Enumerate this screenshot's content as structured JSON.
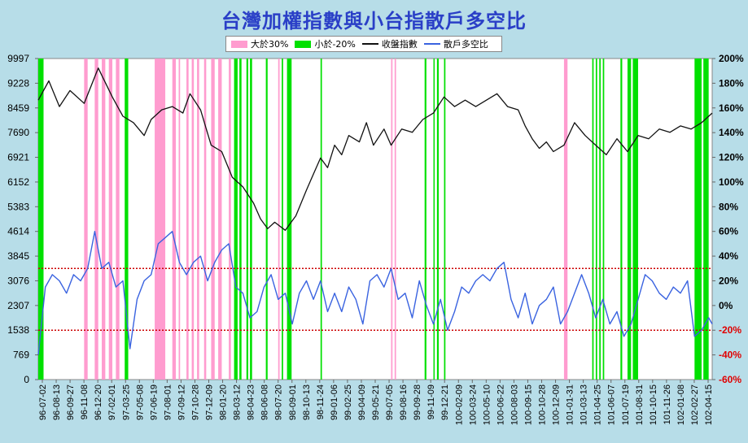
{
  "title": "台灣加權指數與小台指散戶多空比",
  "legend": {
    "items": [
      {
        "label": "大於30%",
        "kind": "band",
        "color": "#ff9ccf"
      },
      {
        "label": "小於-20%",
        "kind": "band",
        "color": "#00e000"
      },
      {
        "label": "收盤指數",
        "kind": "line",
        "color": "#111111"
      },
      {
        "label": "散戶多空比",
        "kind": "line",
        "color": "#3a63e0"
      }
    ]
  },
  "chart_data": {
    "type": "line",
    "y_left": {
      "min": 0,
      "max": 9997,
      "ticks": [
        "9997",
        "9228",
        "8459",
        "7690",
        "6921",
        "6152",
        "5383",
        "4614",
        "3845",
        "3076",
        "2307",
        "1538",
        "769",
        "0"
      ]
    },
    "y_right": {
      "min": -60,
      "max": 200,
      "ticks": [
        "200%",
        "180%",
        "160%",
        "140%",
        "120%",
        "100%",
        "80%",
        "60%",
        "40%",
        "20%",
        "0%",
        "-20%",
        "-40%",
        "-60%"
      ]
    },
    "x_labels": [
      "96-07-02",
      "96-08-13",
      "96-09-27",
      "96-11-08",
      "96-12-20",
      "97-02-01",
      "97-03-25",
      "97-05-08",
      "97-06-19",
      "97-08-01",
      "97-09-12",
      "97-10-28",
      "97-12-09",
      "98-01-20",
      "98-03-12",
      "98-04-23",
      "98-06-08",
      "98-07-20",
      "98-09-01",
      "98-10-13",
      "98-11-24",
      "99-01-06",
      "99-02-25",
      "99-04-09",
      "99-05-21",
      "99-07-05",
      "99-08-16",
      "99-09-28",
      "99-11-09",
      "99-12-21",
      "100-02-09",
      "100-03-24",
      "100-05-10",
      "100-06-22",
      "100-08-03",
      "100-09-15",
      "100-10-28",
      "100-12-09",
      "101-01-31",
      "101-03-13",
      "101-04-25",
      "101-06-07",
      "101-07-19",
      "101-08-31",
      "101-10-15",
      "101-11-26",
      "102-01-08",
      "102-02-27",
      "102-04-15"
    ],
    "reference_lines": [
      {
        "value": 30,
        "axis": "right",
        "color": "#cc0000"
      },
      {
        "value": -20,
        "axis": "right",
        "color": "#cc0000"
      }
    ],
    "series": [
      {
        "name": "收盤指數",
        "axis": "left",
        "color": "#111111",
        "values": [
          [
            0,
            8700
          ],
          [
            3,
            9300
          ],
          [
            6,
            8500
          ],
          [
            9,
            9000
          ],
          [
            13,
            8600
          ],
          [
            17,
            9700
          ],
          [
            21,
            8800
          ],
          [
            24,
            8200
          ],
          [
            27,
            8000
          ],
          [
            30,
            7600
          ],
          [
            32,
            8100
          ],
          [
            35,
            8400
          ],
          [
            38,
            8500
          ],
          [
            41,
            8300
          ],
          [
            43,
            8900
          ],
          [
            46,
            8400
          ],
          [
            49,
            7300
          ],
          [
            52,
            7100
          ],
          [
            55,
            6300
          ],
          [
            58,
            6000
          ],
          [
            61,
            5500
          ],
          [
            63,
            5000
          ],
          [
            65,
            4700
          ],
          [
            67,
            4900
          ],
          [
            70,
            4650
          ],
          [
            73,
            5100
          ],
          [
            76,
            5900
          ],
          [
            78,
            6400
          ],
          [
            80,
            6900
          ],
          [
            82,
            6600
          ],
          [
            84,
            7300
          ],
          [
            86,
            7000
          ],
          [
            88,
            7600
          ],
          [
            91,
            7400
          ],
          [
            93,
            8000
          ],
          [
            95,
            7300
          ],
          [
            98,
            7800
          ],
          [
            100,
            7300
          ],
          [
            103,
            7800
          ],
          [
            106,
            7700
          ],
          [
            109,
            8100
          ],
          [
            112,
            8300
          ],
          [
            115,
            8800
          ],
          [
            118,
            8500
          ],
          [
            121,
            8700
          ],
          [
            124,
            8500
          ],
          [
            127,
            8700
          ],
          [
            130,
            8900
          ],
          [
            133,
            8500
          ],
          [
            136,
            8400
          ],
          [
            138,
            7900
          ],
          [
            140,
            7500
          ],
          [
            142,
            7200
          ],
          [
            144,
            7400
          ],
          [
            146,
            7100
          ],
          [
            149,
            7300
          ],
          [
            152,
            8000
          ],
          [
            155,
            7600
          ],
          [
            158,
            7300
          ],
          [
            161,
            7000
          ],
          [
            164,
            7500
          ],
          [
            167,
            7100
          ],
          [
            170,
            7600
          ],
          [
            173,
            7500
          ],
          [
            176,
            7800
          ],
          [
            179,
            7700
          ],
          [
            182,
            7900
          ],
          [
            185,
            7800
          ],
          [
            188,
            8000
          ],
          [
            191,
            8300
          ]
        ]
      },
      {
        "name": "散戶多空比",
        "axis": "right",
        "color": "#3a63e0",
        "values": [
          [
            0,
            -40
          ],
          [
            2,
            15
          ],
          [
            4,
            25
          ],
          [
            6,
            20
          ],
          [
            8,
            10
          ],
          [
            10,
            25
          ],
          [
            12,
            20
          ],
          [
            14,
            30
          ],
          [
            16,
            60
          ],
          [
            18,
            30
          ],
          [
            20,
            35
          ],
          [
            22,
            15
          ],
          [
            24,
            20
          ],
          [
            26,
            -35
          ],
          [
            28,
            5
          ],
          [
            30,
            20
          ],
          [
            32,
            25
          ],
          [
            34,
            50
          ],
          [
            36,
            55
          ],
          [
            38,
            60
          ],
          [
            40,
            35
          ],
          [
            42,
            25
          ],
          [
            44,
            35
          ],
          [
            46,
            40
          ],
          [
            48,
            20
          ],
          [
            50,
            35
          ],
          [
            52,
            45
          ],
          [
            54,
            50
          ],
          [
            56,
            15
          ],
          [
            58,
            10
          ],
          [
            60,
            -10
          ],
          [
            62,
            -5
          ],
          [
            64,
            15
          ],
          [
            66,
            25
          ],
          [
            68,
            5
          ],
          [
            70,
            10
          ],
          [
            72,
            -15
          ],
          [
            74,
            10
          ],
          [
            76,
            20
          ],
          [
            78,
            5
          ],
          [
            80,
            20
          ],
          [
            82,
            -5
          ],
          [
            84,
            10
          ],
          [
            86,
            -5
          ],
          [
            88,
            15
          ],
          [
            90,
            5
          ],
          [
            92,
            -15
          ],
          [
            94,
            20
          ],
          [
            96,
            25
          ],
          [
            98,
            15
          ],
          [
            100,
            30
          ],
          [
            102,
            5
          ],
          [
            104,
            10
          ],
          [
            106,
            -10
          ],
          [
            108,
            20
          ],
          [
            110,
            0
          ],
          [
            112,
            -15
          ],
          [
            114,
            5
          ],
          [
            116,
            -20
          ],
          [
            118,
            -5
          ],
          [
            120,
            15
          ],
          [
            122,
            10
          ],
          [
            124,
            20
          ],
          [
            126,
            25
          ],
          [
            128,
            20
          ],
          [
            130,
            30
          ],
          [
            132,
            35
          ],
          [
            134,
            5
          ],
          [
            136,
            -10
          ],
          [
            138,
            10
          ],
          [
            140,
            -15
          ],
          [
            142,
            0
          ],
          [
            144,
            5
          ],
          [
            146,
            15
          ],
          [
            148,
            -15
          ],
          [
            150,
            -5
          ],
          [
            152,
            10
          ],
          [
            154,
            25
          ],
          [
            156,
            10
          ],
          [
            158,
            -10
          ],
          [
            160,
            5
          ],
          [
            162,
            -15
          ],
          [
            164,
            -5
          ],
          [
            166,
            -25
          ],
          [
            168,
            -15
          ],
          [
            170,
            5
          ],
          [
            172,
            25
          ],
          [
            174,
            20
          ],
          [
            176,
            10
          ],
          [
            178,
            5
          ],
          [
            180,
            15
          ],
          [
            182,
            10
          ],
          [
            184,
            20
          ],
          [
            186,
            -25
          ],
          [
            188,
            -20
          ],
          [
            190,
            -10
          ],
          [
            191,
            -15
          ]
        ]
      }
    ],
    "bands": [
      {
        "label": "大於30%",
        "color": "#ff9ccf",
        "ranges": [
          [
            13,
            14
          ],
          [
            16,
            17
          ],
          [
            18,
            19
          ],
          [
            20,
            21
          ],
          [
            22,
            23
          ],
          [
            33,
            36
          ],
          [
            38,
            39
          ],
          [
            39.8,
            40.2
          ],
          [
            42,
            42.6
          ],
          [
            43.5,
            44.1
          ],
          [
            45,
            45.6
          ],
          [
            47,
            47.6
          ],
          [
            49,
            50
          ],
          [
            51,
            52
          ],
          [
            54,
            54.6
          ],
          [
            68,
            68.4
          ],
          [
            100,
            100.4
          ],
          [
            101,
            101.4
          ],
          [
            149,
            150
          ]
        ]
      },
      {
        "label": "小於-20%",
        "color": "#00e000",
        "ranges": [
          [
            0,
            1.5
          ],
          [
            24.5,
            25.5
          ],
          [
            55.5,
            56.5
          ],
          [
            57,
            57.6
          ],
          [
            59,
            59.5
          ],
          [
            60,
            60.6
          ],
          [
            64.5,
            65
          ],
          [
            69,
            69.4
          ],
          [
            70.5,
            71.8
          ],
          [
            80,
            80.4
          ],
          [
            109.5,
            110
          ],
          [
            112,
            112.3
          ],
          [
            113,
            113.5
          ],
          [
            115,
            115.4
          ],
          [
            157,
            157.4
          ],
          [
            158,
            158.4
          ],
          [
            159,
            159.4
          ],
          [
            160,
            160.4
          ],
          [
            165,
            165.5
          ],
          [
            167,
            168
          ],
          [
            168.5,
            170
          ],
          [
            186,
            188
          ],
          [
            188.5,
            190
          ]
        ]
      }
    ]
  }
}
